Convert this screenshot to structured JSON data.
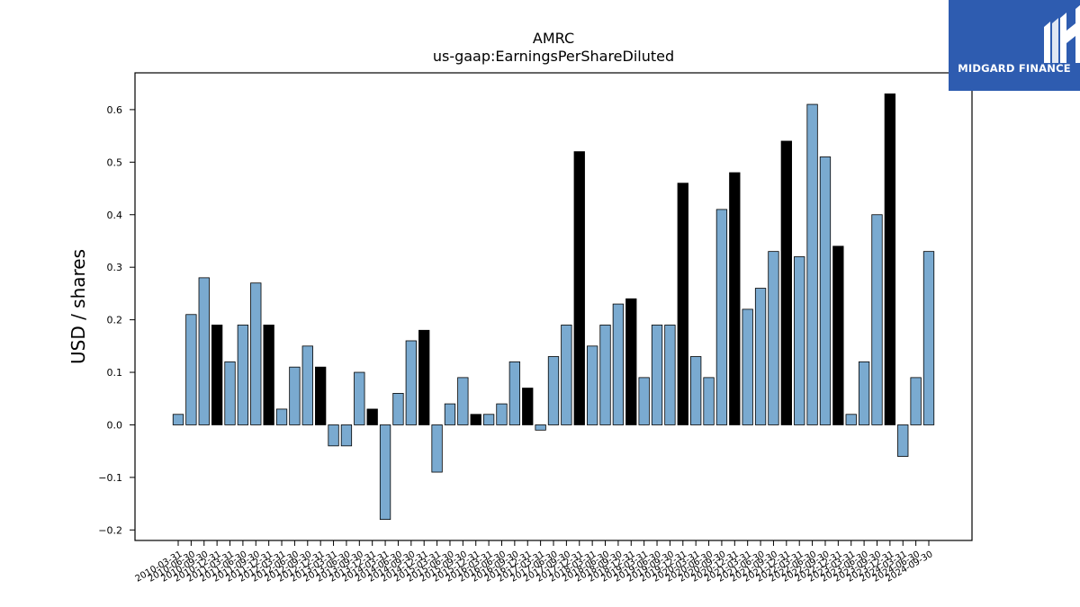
{
  "chart_data": {
    "type": "bar",
    "title": "AMRC",
    "subtitle": "us-gaap:EarningsPerShareDiluted",
    "xlabel": "",
    "ylabel": "USD / shares",
    "ylim": [
      -0.22,
      0.67
    ],
    "yticks": [
      -0.2,
      -0.1,
      0.0,
      0.1,
      0.2,
      0.3,
      0.4,
      0.5,
      0.6
    ],
    "ytick_labels": [
      "−0.2",
      "−0.1",
      "0.0",
      "0.1",
      "0.2",
      "0.3",
      "0.4",
      "0.5",
      "0.6"
    ],
    "grid": false,
    "legend": "none",
    "colors": {
      "quarter": "#7aaad0",
      "annual": "#000000",
      "edge": "#000000"
    },
    "categories": [
      "2010-03-31",
      "2010-06-30",
      "2010-09-30",
      "2010-12-31",
      "2011-03-31",
      "2011-06-30",
      "2011-09-30",
      "2011-12-31",
      "2012-03-31",
      "2012-06-30",
      "2012-09-30",
      "2012-12-31",
      "2013-03-31",
      "2013-06-30",
      "2013-09-30",
      "2013-12-31",
      "2014-03-31",
      "2014-06-30",
      "2014-09-30",
      "2014-12-31",
      "2015-03-31",
      "2015-06-30",
      "2015-09-30",
      "2015-12-31",
      "2016-03-31",
      "2016-06-30",
      "2016-09-30",
      "2016-12-31",
      "2017-03-31",
      "2017-06-30",
      "2017-09-30",
      "2017-12-31",
      "2018-03-31",
      "2018-06-30",
      "2018-09-30",
      "2018-12-31",
      "2019-03-31",
      "2019-06-30",
      "2019-09-30",
      "2019-12-31",
      "2020-03-31",
      "2020-06-30",
      "2020-09-30",
      "2020-12-31",
      "2021-03-31",
      "2021-06-30",
      "2021-09-30",
      "2021-12-31",
      "2022-03-31",
      "2022-06-30",
      "2022-09-30",
      "2022-12-31",
      "2023-03-31",
      "2023-06-30",
      "2023-09-30",
      "2023-12-31",
      "2024-03-31",
      "2024-06-30",
      "2024-09-30"
    ],
    "values": [
      0.02,
      0.21,
      0.28,
      0.19,
      0.12,
      0.19,
      0.27,
      0.19,
      0.03,
      0.11,
      0.15,
      0.11,
      -0.04,
      -0.04,
      0.1,
      0.03,
      -0.18,
      0.06,
      0.16,
      0.18,
      -0.09,
      0.04,
      0.09,
      0.02,
      0.02,
      0.04,
      0.12,
      0.07,
      -0.01,
      0.13,
      0.19,
      0.52,
      0.15,
      0.19,
      0.23,
      0.24,
      0.09,
      0.19,
      0.19,
      0.46,
      0.13,
      0.09,
      0.41,
      0.48,
      0.22,
      0.26,
      0.33,
      0.54,
      0.32,
      0.61,
      0.51,
      0.34,
      0.02,
      0.12,
      0.4,
      0.63,
      -0.06,
      0.09,
      0.33
    ],
    "annual_flags": [
      0,
      0,
      0,
      1,
      0,
      0,
      0,
      1,
      0,
      0,
      0,
      1,
      0,
      0,
      0,
      1,
      0,
      0,
      0,
      1,
      0,
      0,
      0,
      1,
      0,
      0,
      0,
      1,
      0,
      0,
      0,
      1,
      0,
      0,
      0,
      1,
      0,
      0,
      0,
      1,
      0,
      0,
      0,
      1,
      0,
      0,
      0,
      1,
      0,
      0,
      0,
      1,
      0,
      0,
      0,
      1,
      0,
      0,
      0
    ]
  },
  "logo": {
    "text": "MIDGARD FINANCE",
    "icon": "midgard-m-logo-icon",
    "color": "#2e5cb0"
  }
}
